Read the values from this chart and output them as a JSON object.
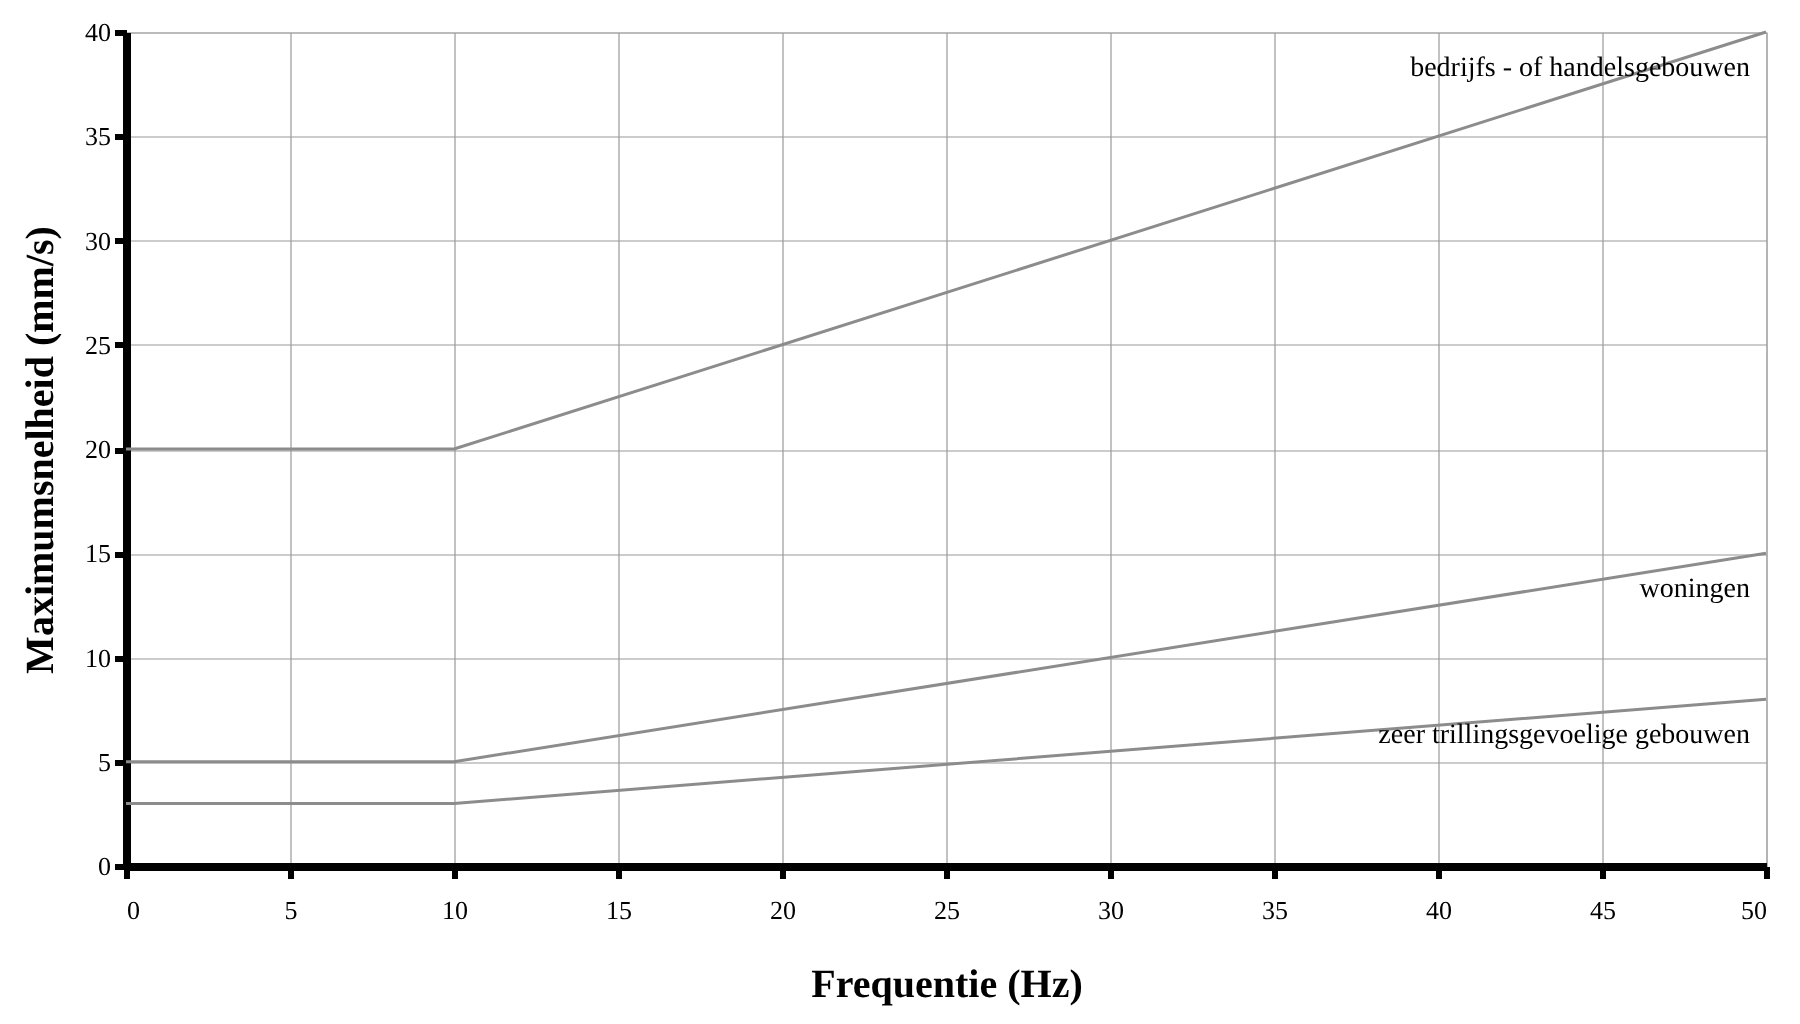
{
  "chart_data": {
    "type": "line",
    "xlabel": "Frequentie (Hz)",
    "ylabel": "Maximumsnelheid (mm/s)",
    "xlim": [
      0,
      50
    ],
    "xticks": [
      0,
      5,
      10,
      15,
      20,
      25,
      30,
      35,
      40,
      45,
      50
    ],
    "ylim": [
      0,
      40
    ],
    "yticks": [
      0,
      5,
      10,
      15,
      20,
      25,
      30,
      35,
      40
    ],
    "grid": true,
    "line_style": "solid",
    "marker": "none",
    "series": [
      {
        "name": "bedrijfs - of handelsgebouwen",
        "color": "#8c8c8c",
        "x": [
          0,
          10,
          50
        ],
        "values": [
          20,
          20,
          40
        ]
      },
      {
        "name": "woningen",
        "color": "#8c8c8c",
        "x": [
          0,
          10,
          50
        ],
        "values": [
          5,
          5,
          15
        ]
      },
      {
        "name": "zeer trillingsgevoelige gebouwen",
        "color": "#8c8c8c",
        "x": [
          0,
          10,
          50
        ],
        "values": [
          3,
          3,
          8
        ]
      }
    ]
  }
}
